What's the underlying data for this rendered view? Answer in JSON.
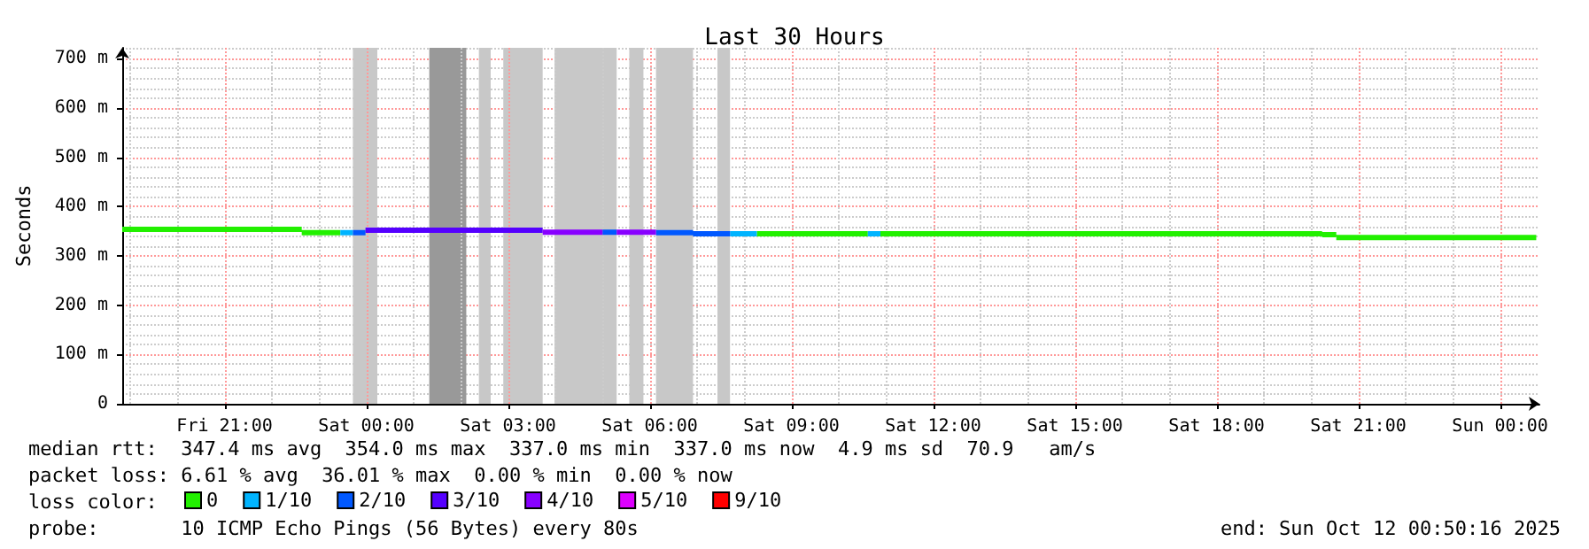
{
  "chart_data": {
    "type": "line",
    "title": "Last 30 Hours",
    "ylabel": "Seconds",
    "legend_title": "loss color:",
    "xlim": [
      "2025-10-10T18:50",
      "2025-10-12T00:50"
    ],
    "xticks": [
      {
        "value": "2025-10-10T21:00",
        "label": "Fri 21:00"
      },
      {
        "value": "2025-10-11T00:00",
        "label": "Sat 00:00"
      },
      {
        "value": "2025-10-11T03:00",
        "label": "Sat 03:00"
      },
      {
        "value": "2025-10-11T06:00",
        "label": "Sat 06:00"
      },
      {
        "value": "2025-10-11T09:00",
        "label": "Sat 09:00"
      },
      {
        "value": "2025-10-11T12:00",
        "label": "Sat 12:00"
      },
      {
        "value": "2025-10-11T15:00",
        "label": "Sat 15:00"
      },
      {
        "value": "2025-10-11T18:00",
        "label": "Sat 18:00"
      },
      {
        "value": "2025-10-11T21:00",
        "label": "Sat 21:00"
      },
      {
        "value": "2025-10-12T00:00",
        "label": "Sun 00:00"
      }
    ],
    "ylim": [
      0,
      722
    ],
    "yticks": [
      0,
      {
        "value": 100,
        "label": "100 m"
      },
      {
        "value": 200,
        "label": "200 m"
      },
      {
        "value": 300,
        "label": "300 m"
      },
      {
        "value": 400,
        "label": "400 m"
      },
      {
        "value": 500,
        "label": "500 m"
      },
      {
        "value": 600,
        "label": "600 m"
      },
      {
        "value": 700,
        "label": "700 m"
      }
    ],
    "grid": true,
    "legend": "bottom",
    "marker": "none",
    "line_style": "solid",
    "series": [
      {
        "name": "0",
        "color": "#22f000",
        "x": [
          "2025-10-10T18:50",
          "2025-10-10T22:38",
          null,
          "2025-10-10T22:38",
          "2025-10-10T23:27",
          null,
          "2025-10-11T08:16",
          "2025-10-11T10:37",
          null,
          "2025-10-11T10:53",
          "2025-10-11T20:14",
          null,
          "2025-10-11T20:14",
          "2025-10-11T20:32",
          null,
          "2025-10-11T20:32",
          "2025-10-12T00:46"
        ],
        "values": [
          354,
          354,
          null,
          347,
          347,
          null,
          345,
          345,
          null,
          345,
          345,
          null,
          343,
          343,
          null,
          337,
          337
        ]
      },
      {
        "name": "1/10",
        "color": "#00b4ff",
        "x": [
          "2025-10-10T23:27",
          "2025-10-10T23:43",
          null,
          "2025-10-11T07:42",
          "2025-10-11T08:16",
          null,
          "2025-10-11T10:37",
          "2025-10-11T10:53"
        ],
        "values": [
          347,
          347,
          null,
          345,
          345,
          null,
          345,
          345
        ]
      },
      {
        "name": "2/10",
        "color": "#0058ff",
        "x": [
          "2025-10-10T23:43",
          "2025-10-10T23:59",
          null,
          "2025-10-11T05:00",
          "2025-10-11T05:18",
          null,
          "2025-10-11T06:08",
          "2025-10-11T06:55",
          null,
          "2025-10-11T06:55",
          "2025-10-11T07:42"
        ],
        "values": [
          347,
          347,
          null,
          348,
          348,
          null,
          347,
          347,
          null,
          345,
          345
        ]
      },
      {
        "name": "3/10",
        "color": "#5500ff",
        "x": [
          "2025-10-10T23:59",
          "2025-10-11T03:44"
        ],
        "values": [
          352,
          352
        ]
      },
      {
        "name": "4/10",
        "color": "#8800ff",
        "x": [
          "2025-10-11T03:44",
          "2025-10-11T05:00",
          null,
          "2025-10-11T05:18",
          "2025-10-11T06:08"
        ],
        "values": [
          348,
          348,
          null,
          348,
          348
        ]
      },
      {
        "name": "5/10",
        "color": "#dd00ff"
      },
      {
        "name": "9/10",
        "color": "#ff0000"
      }
    ],
    "bands": [
      {
        "axis": "x",
        "from": "2025-10-10T23:43",
        "to": "2025-10-11T00:14",
        "color": "#c8c8c8"
      },
      {
        "axis": "x",
        "from": "2025-10-11T01:20",
        "to": "2025-10-11T02:07",
        "color": "#999999"
      },
      {
        "axis": "x",
        "from": "2025-10-11T02:23",
        "to": "2025-10-11T02:38",
        "color": "#c8c8c8"
      },
      {
        "axis": "x",
        "from": "2025-10-11T02:54",
        "to": "2025-10-11T03:44",
        "color": "#c8c8c8"
      },
      {
        "axis": "x",
        "from": "2025-10-11T03:59",
        "to": "2025-10-11T05:18",
        "color": "#c8c8c8"
      },
      {
        "axis": "x",
        "from": "2025-10-11T05:34",
        "to": "2025-10-11T05:52",
        "color": "#c8c8c8"
      },
      {
        "axis": "x",
        "from": "2025-10-11T06:08",
        "to": "2025-10-11T06:55",
        "color": "#c8c8c8"
      },
      {
        "axis": "x",
        "from": "2025-10-11T07:26",
        "to": "2025-10-11T07:42",
        "color": "#c8c8c8"
      }
    ],
    "annotations": [
      "median rtt:  347.4 ms avg  354.0 ms max  337.0 ms min  337.0 ms now  4.9 ms sd  70.9   am/s",
      "packet loss: 6.61 % avg  36.01 % max  0.00 % min  0.00 % now",
      "probe:       10 ICMP Echo Pings (56 Bytes) every 80s",
      "end: Sun Oct 12 00:50:16 2025"
    ]
  }
}
